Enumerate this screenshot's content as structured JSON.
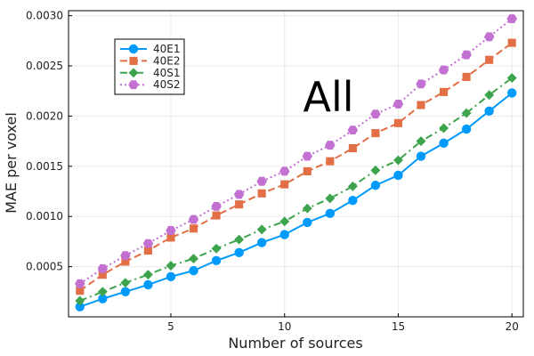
{
  "chart_data": {
    "type": "line",
    "xlabel": "Number of sources",
    "ylabel": "MAE per voxel",
    "annotation": "All",
    "xlim": [
      0.5,
      20.5
    ],
    "ylim": [
      0.0,
      0.00305
    ],
    "xticks": [
      5,
      10,
      15,
      20
    ],
    "yticks": [
      0.0005,
      0.001,
      0.0015,
      0.002,
      0.0025,
      0.003
    ],
    "ytick_labels": [
      "0.0005",
      "0.0010",
      "0.0015",
      "0.0020",
      "0.0025",
      "0.0030"
    ],
    "grid": true,
    "legend_position": "top-left",
    "x": [
      1,
      2,
      3,
      4,
      5,
      6,
      7,
      8,
      9,
      10,
      11,
      12,
      13,
      14,
      15,
      16,
      17,
      18,
      19,
      20
    ],
    "series": [
      {
        "name": "40E1",
        "color": "#009AFA",
        "marker": "circle",
        "linestyle": "solid",
        "values": [
          0.0001,
          0.00018,
          0.00025,
          0.00032,
          0.0004,
          0.00046,
          0.00056,
          0.00064,
          0.00074,
          0.00082,
          0.00094,
          0.00103,
          0.00116,
          0.00131,
          0.00141,
          0.0016,
          0.00173,
          0.00187,
          0.00205,
          0.00223
        ]
      },
      {
        "name": "40E2",
        "color": "#E26F46",
        "marker": "square",
        "linestyle": "dash",
        "values": [
          0.00026,
          0.00042,
          0.00055,
          0.00066,
          0.00079,
          0.00088,
          0.00101,
          0.00112,
          0.00123,
          0.00132,
          0.00145,
          0.00155,
          0.00168,
          0.00183,
          0.00193,
          0.00211,
          0.00224,
          0.00239,
          0.00256,
          0.00273
        ]
      },
      {
        "name": "40S1",
        "color": "#3DA44D",
        "marker": "diamond",
        "linestyle": "dashdot",
        "values": [
          0.00016,
          0.00025,
          0.00034,
          0.00042,
          0.00051,
          0.00058,
          0.00068,
          0.00077,
          0.00087,
          0.00095,
          0.00108,
          0.00118,
          0.0013,
          0.00146,
          0.00156,
          0.00175,
          0.00188,
          0.00203,
          0.00221,
          0.00238
        ]
      },
      {
        "name": "40S2",
        "color": "#C271D2",
        "marker": "hexagon",
        "linestyle": "dot",
        "values": [
          0.00033,
          0.00048,
          0.00061,
          0.00073,
          0.00086,
          0.00097,
          0.0011,
          0.00122,
          0.00135,
          0.00145,
          0.0016,
          0.00171,
          0.00186,
          0.00202,
          0.00212,
          0.00232,
          0.00246,
          0.00261,
          0.00279,
          0.00297
        ]
      }
    ]
  }
}
